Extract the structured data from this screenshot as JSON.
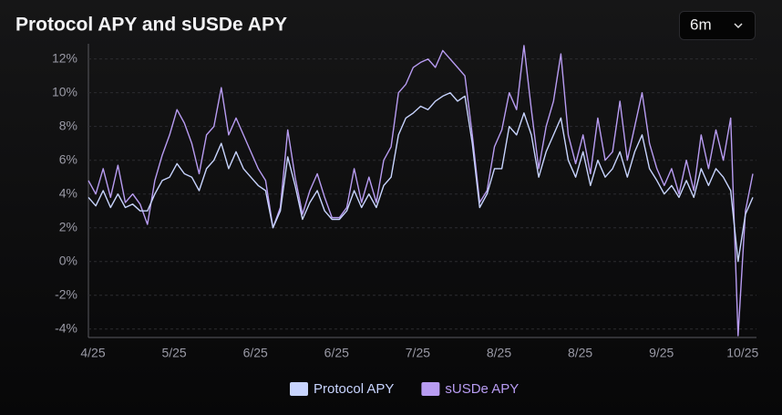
{
  "chart_data": {
    "type": "line",
    "title": "Protocol APY and sUSDe APY",
    "range": "6m",
    "categories": [
      "4/25",
      null,
      null,
      null,
      null,
      null,
      null,
      null,
      null,
      null,
      null,
      "5/25",
      null,
      null,
      null,
      null,
      null,
      null,
      null,
      null,
      null,
      null,
      "6/25",
      null,
      null,
      null,
      null,
      null,
      null,
      null,
      null,
      null,
      null,
      "6/25",
      null,
      null,
      null,
      null,
      null,
      null,
      null,
      null,
      null,
      null,
      "7/25",
      null,
      null,
      null,
      null,
      null,
      null,
      null,
      null,
      null,
      null,
      "8/25",
      null,
      null,
      null,
      null,
      null,
      null,
      null,
      null,
      null,
      null,
      "8/25",
      null,
      null,
      null,
      null,
      null,
      null,
      null,
      null,
      null,
      null,
      "9/25",
      null,
      null,
      null,
      null,
      null,
      null,
      null,
      null,
      null,
      null,
      "10/25",
      null,
      null
    ],
    "series": [
      {
        "name": "Protocol APY",
        "color": "#c8d4ff",
        "values": [
          3.8,
          3.3,
          4.2,
          3.2,
          4.0,
          3.2,
          3.4,
          3.0,
          3.0,
          4.0,
          4.8,
          5.0,
          5.8,
          5.2,
          5.0,
          4.2,
          5.5,
          6.0,
          7.0,
          5.5,
          6.5,
          5.5,
          5.0,
          4.5,
          4.2,
          2.0,
          3.0,
          6.2,
          4.5,
          2.5,
          3.5,
          4.2,
          3.0,
          2.5,
          2.5,
          3.0,
          4.2,
          3.2,
          4.0,
          3.2,
          4.5,
          5.0,
          7.5,
          8.5,
          8.8,
          9.2,
          9.0,
          9.5,
          9.8,
          10.0,
          9.5,
          9.8,
          7.0,
          3.2,
          4.0,
          5.5,
          5.5,
          8.0,
          7.5,
          8.8,
          7.5,
          5.0,
          6.5,
          7.5,
          8.5,
          6.0,
          5.0,
          6.5,
          4.5,
          6.0,
          5.0,
          5.5,
          6.5,
          5.0,
          6.5,
          7.5,
          5.5,
          4.8,
          4.0,
          4.5,
          3.8,
          4.8,
          3.8,
          5.5,
          4.5,
          5.5,
          5.0,
          4.2,
          0.0,
          2.8,
          3.8
        ]
      },
      {
        "name": "sUSDe APY",
        "color": "#b89cf2",
        "values": [
          4.8,
          4.0,
          5.5,
          3.8,
          5.7,
          3.5,
          4.0,
          3.4,
          2.2,
          4.8,
          6.3,
          7.5,
          9.0,
          8.2,
          7.0,
          5.2,
          7.5,
          8.0,
          10.3,
          7.5,
          8.5,
          7.5,
          6.5,
          5.5,
          4.8,
          2.0,
          3.2,
          7.8,
          5.0,
          2.8,
          4.2,
          5.2,
          3.8,
          2.6,
          2.6,
          3.2,
          5.5,
          3.5,
          5.0,
          3.5,
          6.0,
          6.8,
          10.0,
          10.5,
          11.5,
          11.8,
          12.0,
          11.5,
          12.5,
          12.0,
          11.5,
          11.0,
          7.5,
          3.5,
          4.2,
          6.8,
          7.8,
          10.0,
          9.0,
          12.8,
          9.0,
          5.5,
          8.0,
          9.5,
          12.3,
          7.5,
          5.8,
          7.5,
          5.2,
          8.5,
          6.0,
          6.5,
          9.5,
          6.0,
          8.0,
          10.0,
          7.0,
          5.5,
          4.5,
          5.5,
          4.0,
          6.0,
          4.2,
          7.5,
          5.5,
          7.8,
          6.0,
          8.5,
          -4.4,
          3.0,
          5.2
        ]
      }
    ],
    "ylim": [
      -4.5,
      12.9
    ],
    "yticks": [
      {
        "value": -4,
        "label": "-4%"
      },
      {
        "value": -2,
        "label": "-2%"
      },
      {
        "value": 0,
        "label": "0%"
      },
      {
        "value": 2,
        "label": "2%"
      },
      {
        "value": 4,
        "label": "4%"
      },
      {
        "value": 6,
        "label": "6%"
      },
      {
        "value": 8,
        "label": "8%"
      },
      {
        "value": 10,
        "label": "10%"
      },
      {
        "value": 12,
        "label": "12%"
      }
    ],
    "grid": true,
    "legend": "bottom"
  }
}
